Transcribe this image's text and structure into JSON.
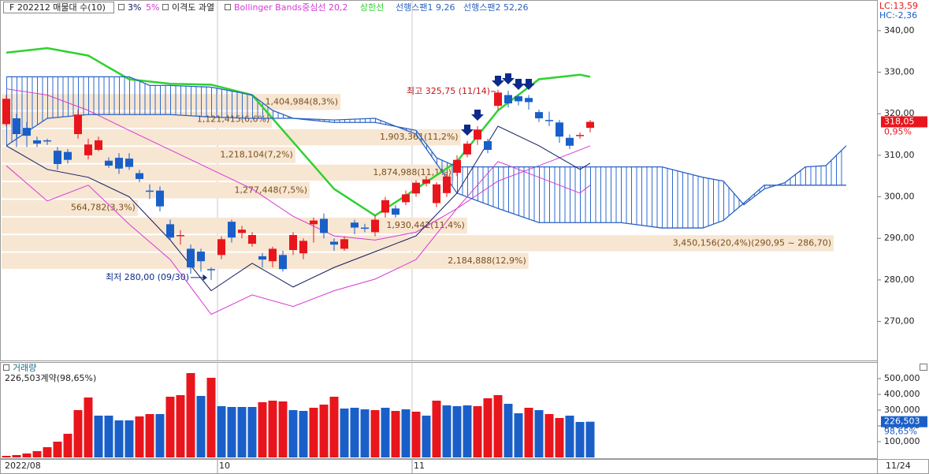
{
  "chart_data": [
    {
      "type": "candlestick",
      "title": "F 202212 매물대 수(10)",
      "overheat_label": "이격도 과열",
      "open": [
        317.5,
        318.9,
        316.6,
        313.6,
        313.6,
        311.1,
        310.8,
        315.1,
        310,
        311.3,
        308.7,
        309.4,
        309.2,
        305.7,
        301.5,
        301.5,
        293.4,
        290.6,
        287.5,
        286.8,
        282.6,
        286,
        294,
        291.3,
        288.7,
        285.7,
        284.5,
        286,
        287.2,
        286.4,
        293.4,
        294.7,
        289.2,
        287.5,
        293.8,
        292.6,
        291.5,
        296.2,
        297.2,
        298.7,
        300.8,
        303.2,
        298.5,
        300.9,
        305.8,
        310.2,
        313.8,
        313.4,
        321.9,
        324.5,
        324.2,
        323.8,
        320.4,
        318.5,
        317.9,
        314.2,
        314.7,
        316.6
      ],
      "high": [
        324.5,
        320,
        318,
        314.5,
        314,
        312,
        311.5,
        321,
        314,
        314.5,
        309.5,
        310.5,
        310.5,
        306.5,
        303,
        302.5,
        294.5,
        292,
        288.5,
        287.5,
        283,
        290.5,
        294.5,
        293,
        291.5,
        286.5,
        288,
        287,
        291.5,
        290,
        295,
        296,
        290,
        290.5,
        294.5,
        293.5,
        295.5,
        300,
        298,
        301.5,
        304,
        305,
        303.5,
        305.5,
        310,
        313.5,
        317,
        314,
        325.75,
        325.5,
        324.5,
        324.5,
        321,
        320.5,
        318.5,
        315,
        315.5,
        318.5
      ],
      "low": [
        317,
        312,
        312,
        312,
        312.5,
        306.5,
        308,
        314,
        309,
        311,
        307,
        305.5,
        306.5,
        303.5,
        299.5,
        296.5,
        289.5,
        288.5,
        281.5,
        282,
        280,
        285,
        289,
        290,
        288,
        283,
        283,
        282,
        286,
        285,
        289,
        290,
        287,
        287,
        291,
        291.5,
        290.5,
        295,
        295,
        298,
        300,
        302.5,
        297.5,
        300,
        305,
        309.5,
        312.5,
        310.5,
        321,
        321.5,
        322,
        321,
        318,
        317,
        313,
        311.5,
        314,
        315.5
      ],
      "close": [
        323.6,
        315.1,
        314.7,
        312.8,
        313.4,
        307.9,
        308.9,
        319.8,
        312.6,
        313.6,
        307.5,
        306.8,
        307.2,
        304.3,
        301.3,
        297.7,
        290.2,
        290.8,
        283,
        284.5,
        282.5,
        289.8,
        290.2,
        292.1,
        290.8,
        284.9,
        287.5,
        282.6,
        290.8,
        289.4,
        294.3,
        291.3,
        288.5,
        289.8,
        292.6,
        292.5,
        294.5,
        299.2,
        295.7,
        300.6,
        303.4,
        304.2,
        303,
        304.9,
        308.9,
        312.8,
        316.2,
        311.3,
        325.1,
        322.5,
        323,
        322.8,
        318.9,
        318.3,
        314.5,
        312.3,
        314.9,
        318.05
      ],
      "up_color": "#e8161c",
      "down_color": "#1a5fc8",
      "ylim": [
        261,
        347
      ],
      "yticks": [
        {
          "value": 270,
          "label": "270,00"
        },
        {
          "value": 280,
          "label": "280,00"
        },
        {
          "value": 290,
          "label": "290,00"
        },
        {
          "value": 300,
          "label": "300,00"
        },
        {
          "value": 310,
          "label": "310,00"
        },
        {
          "value": 320,
          "label": "320,00"
        },
        {
          "value": 330,
          "label": "330,00"
        },
        {
          "value": 340,
          "label": "340,00"
        }
      ],
      "series": [
        {
          "name": "Bollinger Bands중심선 20,2",
          "color": "#d63ad6",
          "x": [
            0,
            4,
            8,
            12,
            16,
            20,
            24,
            28,
            32,
            36,
            40,
            44,
            48,
            52,
            56,
            57
          ],
          "values": [
            326,
            324.5,
            320.8,
            316,
            311.3,
            306.6,
            301.9,
            295.3,
            290.6,
            289.6,
            291.5,
            297.2,
            303.8,
            307.5,
            311.3,
            312.3
          ]
        },
        {
          "name": "상한선",
          "color": "#2fd12f",
          "x": [
            0,
            4,
            8,
            12,
            16,
            20,
            24,
            28,
            32,
            36,
            40,
            44,
            48,
            52,
            56,
            57
          ],
          "values": [
            334.7,
            335.8,
            334,
            328.3,
            327.2,
            327,
            324.5,
            313.2,
            301.9,
            295.5,
            301.9,
            308.5,
            320.8,
            328.3,
            329.4,
            328.9
          ]
        },
        {
          "name": "선행스팬1 9,26",
          "color": "#2b62c4",
          "x": [
            0,
            4,
            8,
            12,
            14,
            16,
            20,
            24,
            26,
            28,
            32,
            36,
            40,
            42,
            44,
            48,
            52,
            56,
            60,
            64,
            68,
            70,
            72,
            74,
            76,
            78,
            80,
            82
          ],
          "values": [
            328.9,
            328.9,
            328.9,
            328.9,
            326.8,
            326.8,
            326.4,
            324.5,
            320.8,
            318.9,
            317.9,
            317.9,
            316,
            309.4,
            307.2,
            307.2,
            307.2,
            307.2,
            307.2,
            307.2,
            304.7,
            303.8,
            298.1,
            301.9,
            303.4,
            307.2,
            307.5,
            312.3
          ]
        },
        {
          "name": "선행스팬2 52,26",
          "color": "#2b62c4",
          "x": [
            0,
            4,
            8,
            12,
            16,
            20,
            24,
            28,
            32,
            36,
            40,
            44,
            48,
            52,
            56,
            60,
            64,
            68,
            70,
            72,
            74,
            76,
            80,
            82
          ],
          "values": [
            312.3,
            318.9,
            319.8,
            319.8,
            319.8,
            319.2,
            318.9,
            318.9,
            318.5,
            318.9,
            315.1,
            300.9,
            297.2,
            293.8,
            293.8,
            293.8,
            292.5,
            292.5,
            294.3,
            298.5,
            302.8,
            302.8,
            302.8,
            302.8
          ]
        },
        {
          "name": "3%",
          "color": "#101a60",
          "x": [
            0,
            4,
            8,
            12,
            16,
            20,
            24,
            28,
            32,
            36,
            40,
            44,
            48,
            52,
            56,
            57
          ],
          "values": [
            312.3,
            306.6,
            304.7,
            300,
            289.6,
            277.4,
            284,
            278.3,
            283,
            286.8,
            290.6,
            300.9,
            317,
            312.3,
            306.6,
            308.1
          ]
        },
        {
          "name": "5%",
          "color": "#d63ad6",
          "x": [
            0,
            4,
            8,
            12,
            16,
            20,
            24,
            28,
            32,
            36,
            40,
            44,
            48,
            52,
            56,
            57
          ],
          "values": [
            307.5,
            299,
            302.8,
            293.4,
            284.9,
            271.7,
            276.4,
            273.6,
            277.4,
            280.2,
            284.9,
            297.2,
            308.5,
            304.7,
            300.9,
            302.8
          ]
        }
      ],
      "cloud_color": "#2d6bd0",
      "profile": {
        "color": "#f7e6d2",
        "label_color": "#7a4f1c",
        "bins": [
          282.45,
          286.7,
          290.95,
          295.2,
          299.45,
          303.7,
          307.95,
          312.2,
          316.45,
          320.7,
          324.95
        ],
        "values": [
          2184888,
          3450156,
          1930442,
          564782,
          1277448,
          1874988,
          1218104,
          1903361,
          1121415,
          1404984
        ],
        "value_labels": [
          "2,184,888(12,9%)",
          "3,450,156(20,4%)(290,95 ~ 286,70)",
          "1,930,442(11,4%)",
          "564,782(3,3%)",
          "1,277,448(7,5%)",
          "1,874,988(11,1%)",
          "1,218,104(7,2%)",
          "1,903,361(11,2%)",
          "1,121,415(6,6%)",
          "1,404,984(8,3%)"
        ]
      },
      "high_label": "최고 325,75 (11/14)",
      "low_label": "최저 280,00 (09/30)",
      "lc_label": "LC:13,59",
      "hc_label": "HC:-2,36",
      "last": {
        "value": 318.05,
        "label": "318,05"
      },
      "change_label": "0,95%"
    },
    {
      "type": "bar",
      "title": "거래량",
      "subtitle": "226,503계약(98,65%)",
      "categories": [
        "2022/08",
        null,
        null,
        null,
        null,
        null,
        null,
        null,
        null,
        null,
        null,
        null,
        null,
        null,
        null,
        null,
        null,
        null,
        null,
        null,
        null,
        "10",
        null,
        null,
        null,
        null,
        null,
        null,
        null,
        null,
        null,
        null,
        null,
        null,
        null,
        null,
        null,
        null,
        null,
        null,
        "11",
        null,
        null,
        null,
        null,
        null,
        null,
        null,
        null,
        null,
        null,
        null,
        null,
        null,
        null,
        null,
        null,
        null
      ],
      "values": [
        10000,
        15000,
        25000,
        40000,
        65000,
        100000,
        150000,
        300000,
        380000,
        265000,
        265000,
        235000,
        235000,
        260000,
        275000,
        275000,
        385000,
        395000,
        535000,
        390000,
        505000,
        325000,
        320000,
        320000,
        320000,
        350000,
        360000,
        355000,
        300000,
        295000,
        315000,
        335000,
        385000,
        310000,
        315000,
        305000,
        300000,
        315000,
        295000,
        305000,
        290000,
        265000,
        360000,
        330000,
        325000,
        330000,
        325000,
        375000,
        395000,
        340000,
        280000,
        315000,
        300000,
        275000,
        250000,
        265000,
        225000,
        226503
      ],
      "colors": [
        "#e8161c",
        "#e8161c",
        "#e8161c",
        "#e8161c",
        "#e8161c",
        "#e8161c",
        "#e8161c",
        "#e8161c",
        "#e8161c",
        "#1a5fc8",
        "#1a5fc8",
        "#1a5fc8",
        "#1a5fc8",
        "#e8161c",
        "#e8161c",
        "#1a5fc8",
        "#e8161c",
        "#e8161c",
        "#e8161c",
        "#1a5fc8",
        "#e8161c",
        "#1a5fc8",
        "#1a5fc8",
        "#1a5fc8",
        "#1a5fc8",
        "#e8161c",
        "#e8161c",
        "#e8161c",
        "#1a5fc8",
        "#1a5fc8",
        "#e8161c",
        "#e8161c",
        "#e8161c",
        "#1a5fc8",
        "#1a5fc8",
        "#1a5fc8",
        "#e8161c",
        "#1a5fc8",
        "#e8161c",
        "#1a5fc8",
        "#e8161c",
        "#1a5fc8",
        "#e8161c",
        "#1a5fc8",
        "#1a5fc8",
        "#1a5fc8",
        "#e8161c",
        "#e8161c",
        "#e8161c",
        "#1a5fc8",
        "#1a5fc8",
        "#e8161c",
        "#1a5fc8",
        "#e8161c",
        "#e8161c",
        "#1a5fc8",
        "#1a5fc8",
        "#1a5fc8"
      ],
      "ylim": [
        0,
        600000
      ],
      "yticks": [
        {
          "value": 100000,
          "label": "100,000"
        },
        {
          "value": 200000,
          "label": "200,000"
        },
        {
          "value": 300000,
          "label": "300,000"
        },
        {
          "value": 400000,
          "label": "400,000"
        },
        {
          "value": 500000,
          "label": "500,000"
        }
      ],
      "last": {
        "value": 226503,
        "label": "226,503"
      },
      "last_pct": "98,65%",
      "cursor_date": "11/24"
    }
  ]
}
